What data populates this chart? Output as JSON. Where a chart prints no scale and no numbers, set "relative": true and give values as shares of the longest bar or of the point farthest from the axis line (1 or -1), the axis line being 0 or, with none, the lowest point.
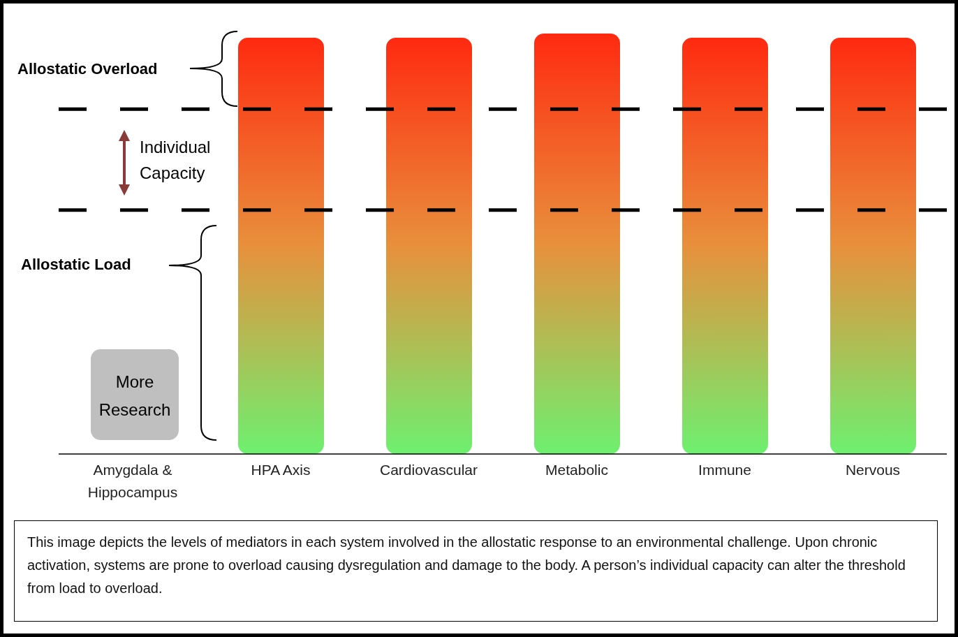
{
  "chart_data": {
    "type": "bar",
    "relative": true,
    "categories": [
      "Amygdala & Hippocampus",
      "HPA Axis",
      "Cardiovascular",
      "Metabolic",
      "Immune",
      "Nervous"
    ],
    "series": [
      {
        "color": "#ff2a10",
        "values": [
          null,
          0.99,
          0.99,
          1,
          0.99,
          0.99
        ]
      }
    ],
    "ref_lines": [
      {
        "axis": "y",
        "value": 0.82,
        "line_style": "dashed",
        "color": "#000000"
      },
      {
        "axis": "y",
        "value": 0.58,
        "line_style": "dashed",
        "color": "#000000"
      }
    ],
    "annotations": [
      "Allostatic Overload",
      "Individual Capacity",
      "Allostatic Load",
      "More Research",
      "This image depicts the levels of mediators in each system involved in the allostatic response to an environmental challenge. Upon chronic activation, systems are prone to overload causing dysregulation and damage to the body. A person’s individual capacity can alter the threshold from load to overload."
    ],
    "grid": false,
    "legend": false
  }
}
